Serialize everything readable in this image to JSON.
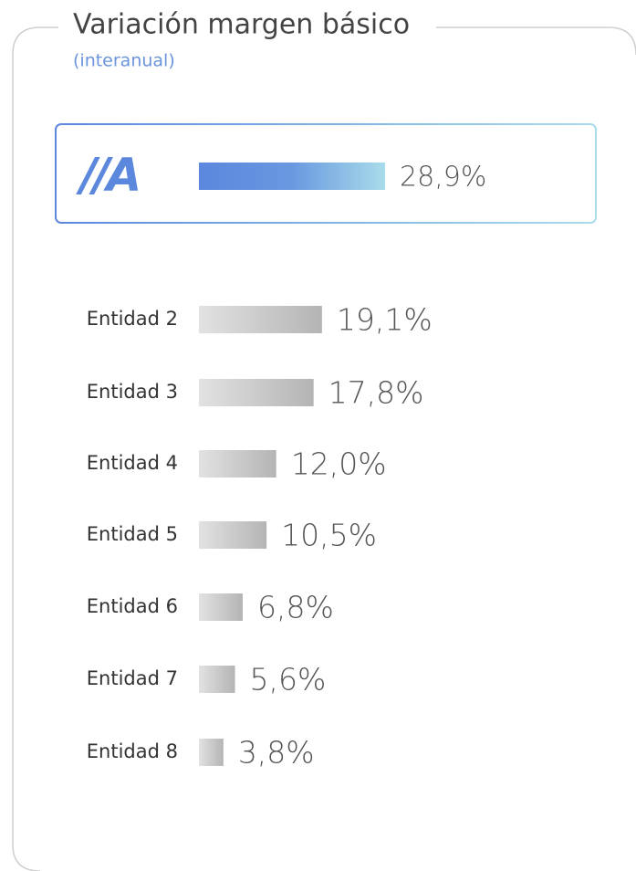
{
  "chart_data": {
    "type": "bar",
    "title": "Variación margen básico",
    "subtitle": "(interanual)",
    "categories": [
      "//A",
      "Entidad 2",
      "Entidad 3",
      "Entidad 4",
      "Entidad 5",
      "Entidad 6",
      "Entidad 7",
      "Entidad 8"
    ],
    "values": [
      28.9,
      19.1,
      17.8,
      12.0,
      10.5,
      6.8,
      5.6,
      3.8
    ],
    "value_labels": [
      "28,9%",
      "19,1%",
      "17,8%",
      "12,0%",
      "10,5%",
      "6,8%",
      "5,6%",
      "3,8%"
    ],
    "colors": [
      "#5b87dd",
      "#b4b4b4",
      "#b4b4b4",
      "#b4b4b4",
      "#b4b4b4",
      "#b4b4b4",
      "#b4b4b4",
      "#b4b4b4"
    ]
  }
}
